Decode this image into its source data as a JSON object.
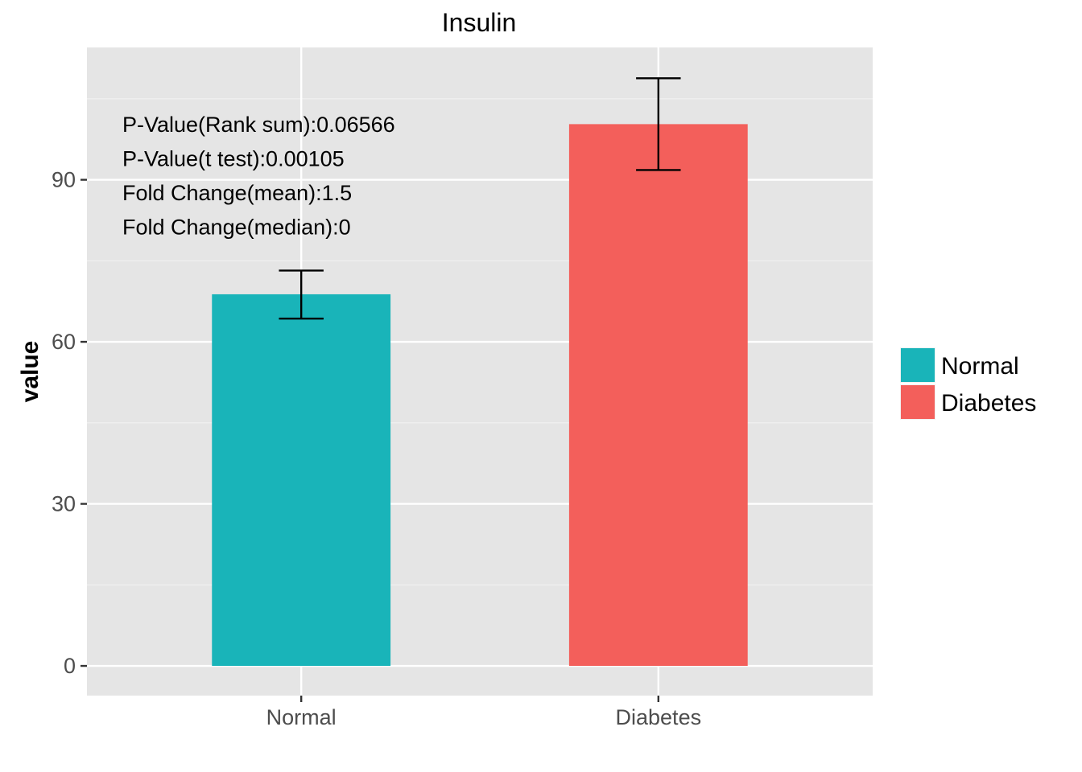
{
  "chart_data": {
    "type": "bar",
    "title": "Insulin",
    "xlabel": "",
    "ylabel": "value",
    "categories": [
      "Normal",
      "Diabetes"
    ],
    "values": [
      68.8,
      100.3
    ],
    "error_low": [
      64.3,
      91.8
    ],
    "error_high": [
      73.2,
      108.8
    ],
    "colors": [
      "#19b4b9",
      "#f35f5b"
    ],
    "ylim": [
      -5.5,
      114.5
    ],
    "yticks": [
      0,
      30,
      60,
      90
    ],
    "grid": true,
    "legend": {
      "position": "right",
      "entries": [
        {
          "label": "Normal",
          "color": "#19b4b9"
        },
        {
          "label": "Diabetes",
          "color": "#f35f5b"
        }
      ]
    },
    "annotations": [
      "P-Value(Rank sum):0.06566",
      "P-Value(t test):0.00105",
      "Fold Change(mean):1.5",
      "Fold Change(median):0"
    ]
  }
}
